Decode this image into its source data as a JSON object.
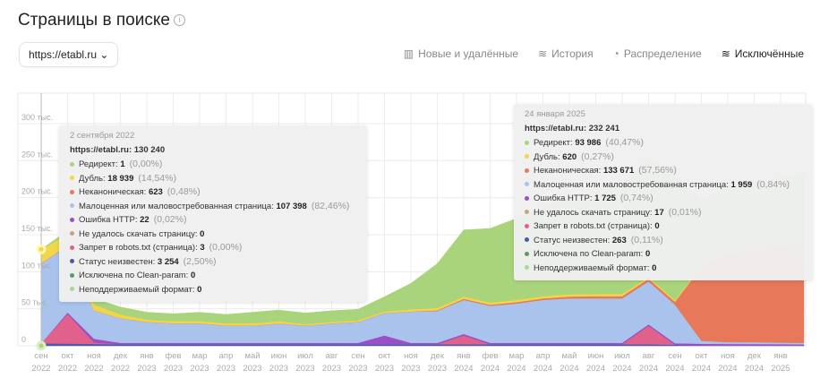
{
  "header": {
    "title": "Страницы в поиске",
    "info_icon": "info-icon",
    "site": "https://etabl.ru"
  },
  "tabs": [
    {
      "label": "Новые и удалённые",
      "icon": "bar-chart-icon",
      "active": false
    },
    {
      "label": "История",
      "icon": "stacked-area-icon",
      "active": false
    },
    {
      "label": "Распределение",
      "icon": "pie-chart-icon",
      "active": false
    },
    {
      "label": "Исключённые",
      "icon": "stacked-area-icon",
      "active": true
    }
  ],
  "categories": {
    "redirect": {
      "name": "Редирект",
      "color": "#a9d47c"
    },
    "duplicate": {
      "name": "Дубль",
      "color": "#f0d64a"
    },
    "noncanonical": {
      "name": "Неканоническая",
      "color": "#e8785a"
    },
    "lowvalue": {
      "name": "Малоценная или маловостребованная страница",
      "color": "#a9c3ec"
    },
    "http_error": {
      "name": "Ошибка HTTP",
      "color": "#9a4fc6"
    },
    "fetch_failed": {
      "name": "Не удалось скачать страницу",
      "color": "#c8a37e"
    },
    "robots": {
      "name": "Запрет в robots.txt (страница)",
      "color": "#e0628c"
    },
    "unknown": {
      "name": "Статус неизвестен",
      "color": "#4a58a8"
    },
    "clean_param": {
      "name": "Исключена по Clean-param",
      "color": "#5a9a6a"
    },
    "unsupported": {
      "name": "Неподдерживаемый формат",
      "color": "#a6d98e"
    }
  },
  "tooltips": [
    {
      "date": "2 сентября 2022",
      "total": "https://etabl.ru: 130 240",
      "rows": [
        {
          "key": "redirect",
          "label": "Редирект: ",
          "value": "1",
          "pct": "(0,00%)"
        },
        {
          "key": "duplicate",
          "label": "Дубль: ",
          "value": "18 939",
          "pct": "(14,54%)"
        },
        {
          "key": "noncanonical",
          "label": "Неканоническая: ",
          "value": "623",
          "pct": "(0,48%)"
        },
        {
          "key": "lowvalue",
          "label": "Малоценная или маловостребованная страница: ",
          "value": "107 398",
          "pct": "(82,46%)"
        },
        {
          "key": "http_error",
          "label": "Ошибка HTTP: ",
          "value": "22",
          "pct": "(0,02%)"
        },
        {
          "key": "fetch_failed",
          "label": "Не удалось скачать страницу: ",
          "value": "0",
          "pct": ""
        },
        {
          "key": "robots",
          "label": "Запрет в robots.txt (страница): ",
          "value": "3",
          "pct": "(0,00%)"
        },
        {
          "key": "unknown",
          "label": "Статус неизвестен: ",
          "value": "3 254",
          "pct": "(2,50%)"
        },
        {
          "key": "clean_param",
          "label": "Исключена по Clean-param: ",
          "value": "0",
          "pct": ""
        },
        {
          "key": "unsupported",
          "label": "Неподдерживаемый формат: ",
          "value": "0",
          "pct": ""
        }
      ]
    },
    {
      "date": "24 января 2025",
      "total": "https://etabl.ru: 232 241",
      "rows": [
        {
          "key": "redirect",
          "label": "Редирект: ",
          "value": "93 986",
          "pct": "(40,47%)"
        },
        {
          "key": "duplicate",
          "label": "Дубль: ",
          "value": "620",
          "pct": "(0,27%)"
        },
        {
          "key": "noncanonical",
          "label": "Неканоническая: ",
          "value": "133 671",
          "pct": "(57,56%)"
        },
        {
          "key": "lowvalue",
          "label": "Малоценная или маловостребованная страница: ",
          "value": "1 959",
          "pct": "(0,84%)"
        },
        {
          "key": "http_error",
          "label": "Ошибка HTTP: ",
          "value": "1 725",
          "pct": "(0,74%)"
        },
        {
          "key": "fetch_failed",
          "label": "Не удалось скачать страницу: ",
          "value": "17",
          "pct": "(0,01%)"
        },
        {
          "key": "robots",
          "label": "Запрет в robots.txt (страница): ",
          "value": "0",
          "pct": ""
        },
        {
          "key": "unknown",
          "label": "Статус неизвестен: ",
          "value": "263",
          "pct": "(0,11%)"
        },
        {
          "key": "clean_param",
          "label": "Исключена по Clean-param: ",
          "value": "0",
          "pct": ""
        },
        {
          "key": "unsupported",
          "label": "Неподдерживаемый формат: ",
          "value": "0",
          "pct": ""
        }
      ]
    }
  ],
  "chart_data": {
    "type": "area",
    "stacked": true,
    "grid": true,
    "ylim": [
      0,
      340000
    ],
    "yticks": [
      0,
      50000,
      100000,
      150000,
      200000,
      250000,
      300000
    ],
    "ytick_labels": [
      "0",
      "50 тыс.",
      "100 тыс.",
      "150 тыс.",
      "200 тыс.",
      "250 тыс.",
      "300 тыс."
    ],
    "x_ticks": [
      [
        "сен",
        "2022"
      ],
      [
        "окт",
        "2022"
      ],
      [
        "ноя",
        "2022"
      ],
      [
        "дек",
        "2022"
      ],
      [
        "янв",
        "2023"
      ],
      [
        "фев",
        "2023"
      ],
      [
        "мар",
        "2023"
      ],
      [
        "апр",
        "2023"
      ],
      [
        "май",
        "2023"
      ],
      [
        "июн",
        "2023"
      ],
      [
        "июл",
        "2023"
      ],
      [
        "авг",
        "2023"
      ],
      [
        "сен",
        "2023"
      ],
      [
        "окт",
        "2023"
      ],
      [
        "ноя",
        "2023"
      ],
      [
        "дек",
        "2023"
      ],
      [
        "янв",
        "2024"
      ],
      [
        "фев",
        "2024"
      ],
      [
        "мар",
        "2024"
      ],
      [
        "апр",
        "2024"
      ],
      [
        "май",
        "2024"
      ],
      [
        "июн",
        "2024"
      ],
      [
        "июл",
        "2024"
      ],
      [
        "авг",
        "2024"
      ],
      [
        "сен",
        "2024"
      ],
      [
        "окт",
        "2024"
      ],
      [
        "ноя",
        "2024"
      ],
      [
        "дек",
        "2024"
      ],
      [
        "янв",
        "2025"
      ]
    ],
    "x": [
      "2022-09",
      "2022-10",
      "2022-11",
      "2022-12",
      "2023-01",
      "2023-02",
      "2023-03",
      "2023-04",
      "2023-05",
      "2023-06",
      "2023-07",
      "2023-08",
      "2023-09",
      "2023-10",
      "2023-11",
      "2023-12",
      "2024-01",
      "2024-02",
      "2024-03",
      "2024-04",
      "2024-05",
      "2024-06",
      "2024-07",
      "2024-08",
      "2024-09",
      "2024-10",
      "2024-11",
      "2024-12",
      "2025-01",
      "2025-01-24"
    ],
    "series": [
      {
        "key": "unknown",
        "name": "Статус неизвестен",
        "values": [
          3254,
          3000,
          2500,
          2000,
          2000,
          2000,
          2000,
          2000,
          2000,
          2000,
          2000,
          2000,
          2000,
          2000,
          2000,
          2000,
          2000,
          2000,
          2000,
          2000,
          2000,
          2000,
          2000,
          2000,
          1500,
          800,
          500,
          400,
          300,
          263
        ]
      },
      {
        "key": "robots",
        "name": "Запрет в robots.txt (страница)",
        "values": [
          3,
          40000,
          2000,
          0,
          0,
          0,
          0,
          0,
          0,
          0,
          0,
          0,
          0,
          0,
          0,
          0,
          12000,
          0,
          0,
          0,
          0,
          0,
          0,
          25000,
          0,
          0,
          0,
          0,
          0,
          0
        ]
      },
      {
        "key": "http_error",
        "name": "Ошибка HTTP",
        "values": [
          22,
          2000,
          5000,
          2000,
          2000,
          2000,
          2000,
          2000,
          2000,
          2000,
          2000,
          2000,
          2000,
          12000,
          2000,
          2000,
          2000,
          2000,
          2000,
          2000,
          2000,
          2000,
          2000,
          2000,
          2000,
          2000,
          2000,
          2000,
          2000,
          1725
        ]
      },
      {
        "key": "lowvalue",
        "name": "Малоценная или маловостребованная страница",
        "values": [
          107398,
          90000,
          38000,
          33000,
          28000,
          26000,
          26000,
          23000,
          23000,
          26000,
          23000,
          26000,
          28000,
          30000,
          42000,
          43000,
          46000,
          50000,
          53000,
          58000,
          60000,
          60000,
          60000,
          58000,
          52000,
          4000,
          2500,
          2500,
          2000,
          1959
        ]
      },
      {
        "key": "noncanonical",
        "name": "Неканоническая",
        "values": [
          623,
          500,
          300,
          300,
          300,
          300,
          300,
          300,
          300,
          300,
          300,
          300,
          300,
          300,
          300,
          1000,
          1500,
          1500,
          2000,
          2000,
          2500,
          3000,
          3000,
          3500,
          4000,
          100000,
          120000,
          125000,
          130000,
          133671
        ]
      },
      {
        "key": "duplicate",
        "name": "Дубль",
        "values": [
          18939,
          15000,
          8000,
          5000,
          3000,
          3000,
          3000,
          3000,
          3000,
          3000,
          2000,
          2000,
          2000,
          2000,
          3000,
          3000,
          3000,
          3000,
          3000,
          3000,
          3000,
          3000,
          3000,
          2000,
          2000,
          1000,
          1000,
          1000,
          800,
          620
        ]
      },
      {
        "key": "redirect",
        "name": "Редирект",
        "values": [
          1,
          5000,
          8000,
          10000,
          10000,
          10000,
          12000,
          12000,
          15000,
          15000,
          15000,
          15000,
          15000,
          20000,
          35000,
          60000,
          90000,
          100000,
          110000,
          120000,
          130000,
          140000,
          150000,
          160000,
          170000,
          90000,
          90000,
          90000,
          92000,
          93986
        ]
      }
    ]
  }
}
